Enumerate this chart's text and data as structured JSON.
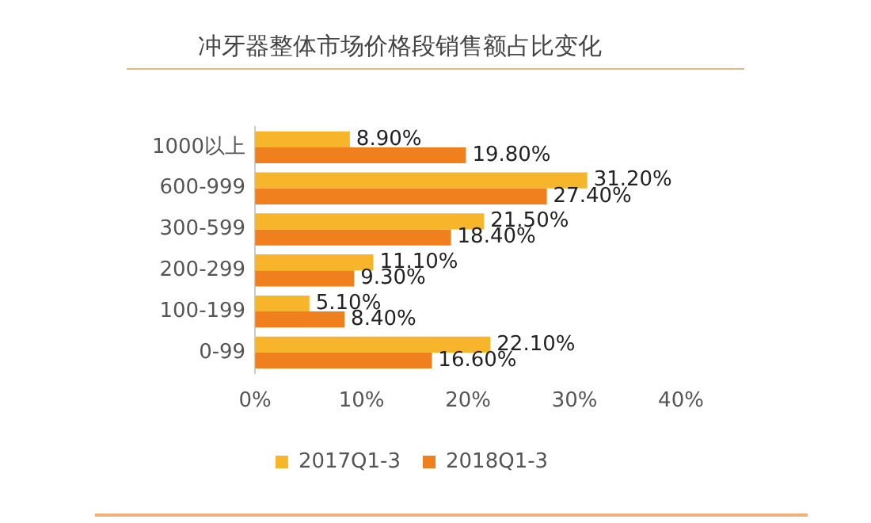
{
  "chart_data": {
    "type": "bar",
    "orientation": "horizontal",
    "title": "冲牙器整体市场价格段销售额占比变化",
    "categories": [
      "1000以上",
      "600-999",
      "300-599",
      "200-299",
      "100-199",
      "0-99"
    ],
    "series": [
      {
        "name": "2017Q1-3",
        "color": "#f7b52c",
        "values": [
          8.9,
          31.2,
          21.5,
          11.1,
          5.1,
          22.1
        ],
        "value_labels": [
          "8.90%",
          "31.20%",
          "21.50%",
          "11.10%",
          "5.10%",
          "22.10%"
        ]
      },
      {
        "name": "2018Q1-3",
        "color": "#f07f1e",
        "values": [
          19.8,
          27.4,
          18.4,
          9.3,
          8.4,
          16.6
        ],
        "value_labels": [
          "19.80%",
          "27.40%",
          "18.40%",
          "9.30%",
          "8.40%",
          "16.60%"
        ]
      }
    ],
    "xlim": [
      0,
      40
    ],
    "xticks": [
      {
        "value": 0,
        "label": "0%"
      },
      {
        "value": 10,
        "label": "10%"
      },
      {
        "value": 20,
        "label": "20%"
      },
      {
        "value": 30,
        "label": "30%"
      },
      {
        "value": 40,
        "label": "40%"
      }
    ],
    "grid": false,
    "legend": "bottom"
  }
}
